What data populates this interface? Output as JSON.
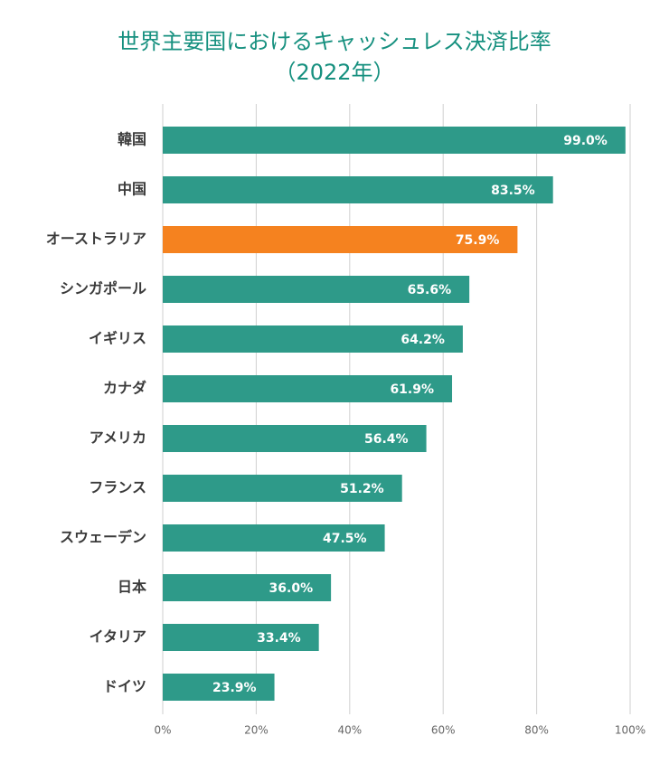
{
  "chart_data": {
    "type": "barh",
    "title": "世界主要国におけるキャッシュレス決済比率",
    "subtitle": "（2022年）",
    "categories": [
      "韓国",
      "中国",
      "オーストラリア",
      "シンガポール",
      "イギリス",
      "カナダ",
      "アメリカ",
      "フランス",
      "スウェーデン",
      "日本",
      "イタリア",
      "ドイツ"
    ],
    "values": [
      99.0,
      83.5,
      75.9,
      65.6,
      64.2,
      61.9,
      56.4,
      51.2,
      47.5,
      36.0,
      33.4,
      23.9
    ],
    "value_labels": [
      "99.0%",
      "83.5%",
      "75.9%",
      "65.6%",
      "64.2%",
      "61.9%",
      "56.4%",
      "51.2%",
      "47.5%",
      "36.0%",
      "33.4%",
      "23.9%"
    ],
    "colors": [
      "#2e9a89",
      "#2e9a89",
      "#f5821f",
      "#2e9a89",
      "#2e9a89",
      "#2e9a89",
      "#2e9a89",
      "#2e9a89",
      "#2e9a89",
      "#2e9a89",
      "#2e9a89",
      "#2e9a89"
    ],
    "xlim": [
      0,
      100
    ],
    "xticks": [
      {
        "value": 0,
        "label": "0%"
      },
      {
        "value": 20,
        "label": "20%"
      },
      {
        "value": 40,
        "label": "40%"
      },
      {
        "value": 60,
        "label": "60%"
      },
      {
        "value": 80,
        "label": "80%"
      },
      {
        "value": 100,
        "label": "100%"
      }
    ],
    "grid": true
  }
}
